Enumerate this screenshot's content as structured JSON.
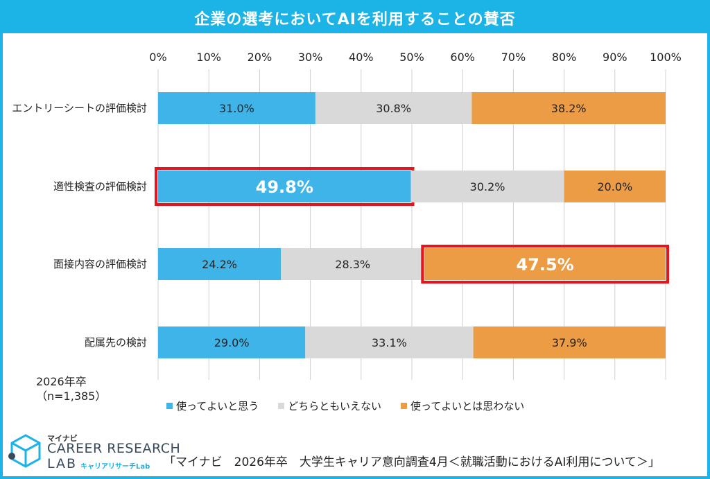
{
  "title": "企業の選考においてAIを利用することの賛否",
  "chart_data": {
    "type": "bar",
    "orientation": "horizontal-stacked-100",
    "categories": [
      "エントリーシートの評価検討",
      "適性検査の評価検討",
      "面接内容の評価検討",
      "配属先の検討"
    ],
    "series": [
      {
        "name": "使ってよいと思う",
        "color": "#3fb4e8",
        "values": [
          31.0,
          49.8,
          24.2,
          29.0
        ]
      },
      {
        "name": "どちらともいえない",
        "color": "#d9d9d9",
        "values": [
          30.8,
          30.2,
          28.3,
          33.1
        ]
      },
      {
        "name": "使ってよいとは思わない",
        "color": "#eb9c44",
        "values": [
          38.2,
          20.0,
          47.5,
          37.9
        ]
      }
    ],
    "value_labels": [
      [
        "31.0%",
        "30.8%",
        "38.2%"
      ],
      [
        "49.8%",
        "30.2%",
        "20.0%"
      ],
      [
        "24.2%",
        "28.3%",
        "47.5%"
      ],
      [
        "29.0%",
        "33.1%",
        "37.9%"
      ]
    ],
    "highlighted": [
      [
        1,
        0
      ],
      [
        2,
        2
      ]
    ],
    "highlight_color": "#e8141c",
    "x_ticks": [
      "0%",
      "10%",
      "20%",
      "30%",
      "40%",
      "50%",
      "60%",
      "70%",
      "80%",
      "90%",
      "100%"
    ],
    "xlim": [
      0,
      100
    ],
    "legend_position": "bottom"
  },
  "sample_note": [
    "2026年卒",
    "（n=1,385）"
  ],
  "logo": {
    "brand": "マイナビ",
    "line1": "CAREER RESEARCH",
    "line2": "LAB",
    "sub": "キャリアリサーチLab"
  },
  "source": "「マイナビ　2026年卒　大学生キャリア意向調査4月＜就職活動におけるAI利用について＞」",
  "colors": {
    "frame": "#1cb3e6"
  }
}
